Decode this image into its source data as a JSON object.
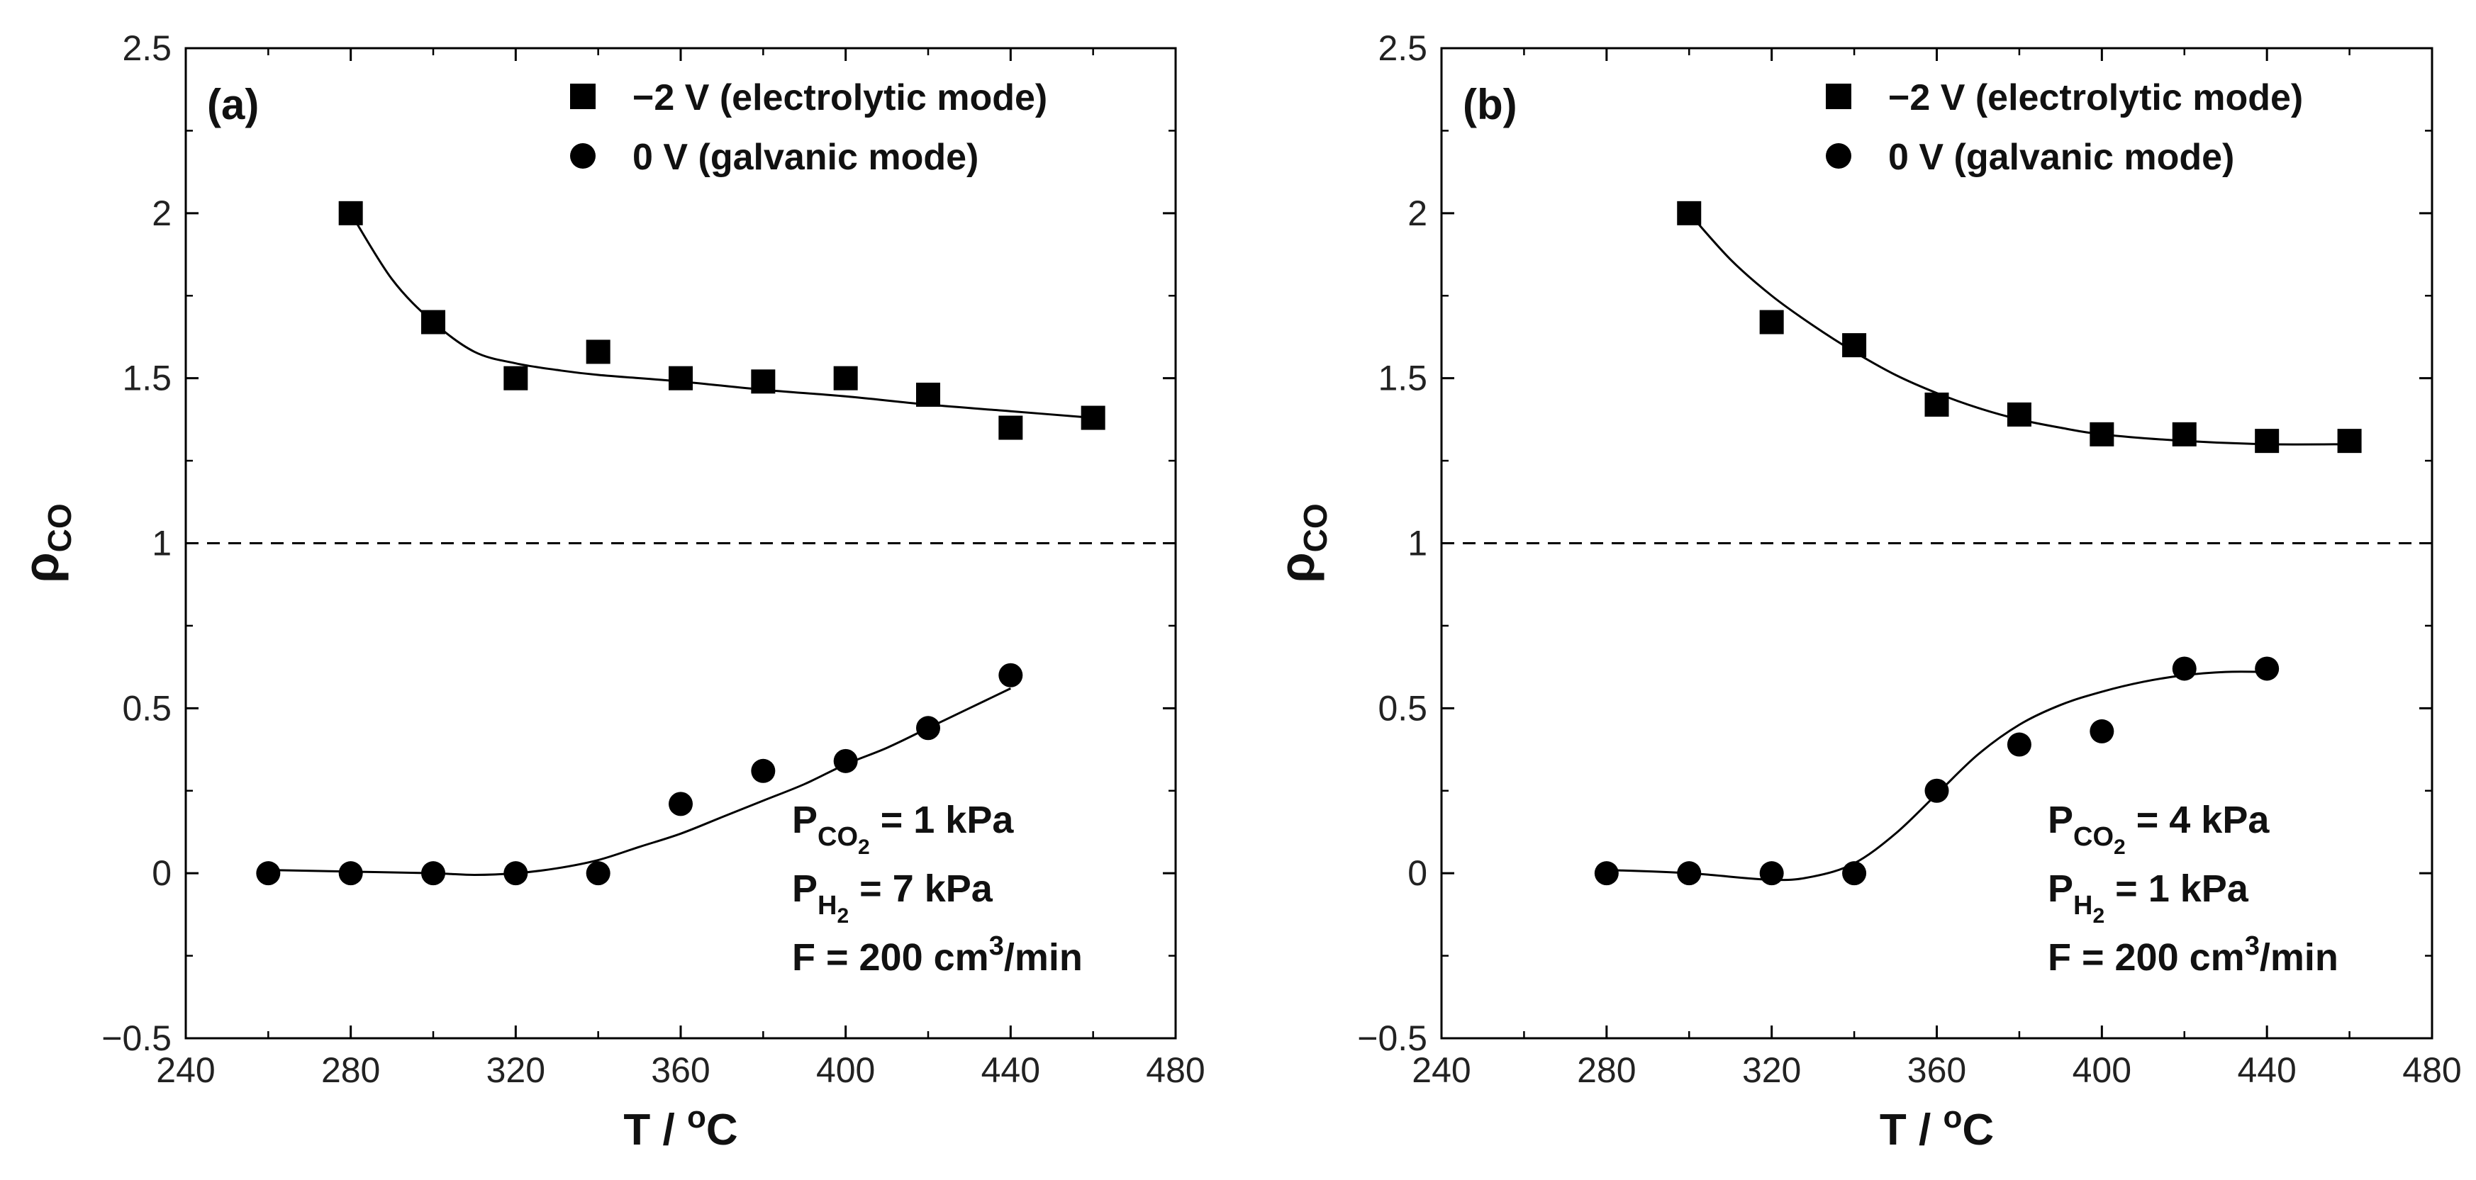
{
  "chart_data": [
    {
      "type": "scatter",
      "panel_label": "(a)",
      "xlabel": "T / ",
      "xlabel_unit_sup": "o",
      "xlabel_unit_tail": "C",
      "ylabel": "ρ",
      "ylabel_sub": "CO",
      "xlim": [
        240,
        480
      ],
      "ylim": [
        -0.5,
        2.5
      ],
      "xticks": [
        "240",
        "280",
        "320",
        "360",
        "400",
        "440",
        "480"
      ],
      "yticks": [
        "−0.5",
        "0",
        "0.5",
        "1",
        "1.5",
        "2",
        "2.5"
      ],
      "reference_line": 1,
      "legend": {
        "location": "top-right",
        "entries": [
          {
            "marker": "square",
            "label": "−2 V (electrolytic mode)"
          },
          {
            "marker": "circle",
            "label": "0 V (galvanic mode)"
          }
        ]
      },
      "series": [
        {
          "name": "−2 V (electrolytic mode)",
          "marker": "square",
          "x": [
            280,
            300,
            320,
            340,
            360,
            380,
            400,
            420,
            440,
            460
          ],
          "y": [
            2.0,
            1.67,
            1.5,
            1.58,
            1.5,
            1.49,
            1.5,
            1.45,
            1.35,
            1.38
          ],
          "fit": {
            "x": [
              280,
              290,
              300,
              310,
              320,
              330,
              340,
              360,
              380,
              400,
              420,
              440,
              460
            ],
            "y": [
              2.0,
              1.8,
              1.67,
              1.58,
              1.545,
              1.525,
              1.51,
              1.49,
              1.465,
              1.445,
              1.42,
              1.4,
              1.38
            ]
          }
        },
        {
          "name": "0 V (galvanic mode)",
          "marker": "circle",
          "x": [
            260,
            280,
            300,
            320,
            340,
            360,
            380,
            400,
            420,
            440
          ],
          "y": [
            0.0,
            0.0,
            0.0,
            0.0,
            0.0,
            0.21,
            0.31,
            0.34,
            0.44,
            0.6
          ],
          "fit": {
            "x": [
              260,
              280,
              300,
              310,
              320,
              330,
              340,
              350,
              360,
              370,
              380,
              390,
              400,
              410,
              420,
              430,
              440
            ],
            "y": [
              0.01,
              0.005,
              0.0,
              -0.005,
              0.0,
              0.015,
              0.04,
              0.08,
              0.12,
              0.17,
              0.22,
              0.27,
              0.33,
              0.38,
              0.44,
              0.5,
              0.56
            ]
          }
        }
      ],
      "conditions": [
        {
          "main": "P",
          "sub": "CO",
          "subsub": "2",
          "tail": " = 1 kPa"
        },
        {
          "main": "P",
          "sub": "H",
          "subsub": "2",
          "tail": " = 7 kPa"
        },
        {
          "main": "F = 200 cm",
          "sup": "3",
          "tail": "/min"
        }
      ]
    },
    {
      "type": "scatter",
      "panel_label": "(b)",
      "xlabel": "T / ",
      "xlabel_unit_sup": "o",
      "xlabel_unit_tail": "C",
      "ylabel": "ρ",
      "ylabel_sub": "CO",
      "xlim": [
        240,
        480
      ],
      "ylim": [
        -0.5,
        2.5
      ],
      "xticks": [
        "240",
        "280",
        "320",
        "360",
        "400",
        "440",
        "480"
      ],
      "yticks": [
        "−0.5",
        "0",
        "0.5",
        "1",
        "1.5",
        "2",
        "2.5"
      ],
      "reference_line": 1,
      "legend": {
        "location": "top-right",
        "entries": [
          {
            "marker": "square",
            "label": "−2 V (electrolytic mode)"
          },
          {
            "marker": "circle",
            "label": "0 V (galvanic mode)"
          }
        ]
      },
      "series": [
        {
          "name": "−2 V (electrolytic mode)",
          "marker": "square",
          "x": [
            300,
            320,
            340,
            360,
            380,
            400,
            420,
            440,
            460
          ],
          "y": [
            2.0,
            1.67,
            1.6,
            1.42,
            1.39,
            1.33,
            1.33,
            1.31,
            1.31
          ],
          "fit": {
            "x": [
              300,
              310,
              320,
              330,
              340,
              350,
              360,
              370,
              380,
              390,
              400,
              420,
              440,
              460
            ],
            "y": [
              2.0,
              1.86,
              1.75,
              1.66,
              1.58,
              1.51,
              1.455,
              1.41,
              1.375,
              1.35,
              1.33,
              1.31,
              1.3,
              1.3
            ]
          }
        },
        {
          "name": "0 V (galvanic mode)",
          "marker": "circle",
          "x": [
            280,
            300,
            320,
            340,
            360,
            380,
            400,
            420,
            440
          ],
          "y": [
            0.0,
            0.0,
            0.0,
            0.0,
            0.25,
            0.39,
            0.43,
            0.62,
            0.62
          ],
          "fit": {
            "x": [
              280,
              300,
              320,
              330,
              340,
              350,
              360,
              370,
              380,
              390,
              400,
              410,
              420,
              430,
              440
            ],
            "y": [
              0.01,
              0.0,
              -0.02,
              -0.01,
              0.03,
              0.12,
              0.24,
              0.36,
              0.45,
              0.51,
              0.55,
              0.58,
              0.6,
              0.61,
              0.61
            ]
          }
        }
      ],
      "conditions": [
        {
          "main": "P",
          "sub": "CO",
          "subsub": "2",
          "tail": " = 4 kPa"
        },
        {
          "main": "P",
          "sub": "H",
          "subsub": "2",
          "tail": " = 1 kPa"
        },
        {
          "main": "F = 200 cm",
          "sup": "3",
          "tail": "/min"
        }
      ]
    }
  ]
}
